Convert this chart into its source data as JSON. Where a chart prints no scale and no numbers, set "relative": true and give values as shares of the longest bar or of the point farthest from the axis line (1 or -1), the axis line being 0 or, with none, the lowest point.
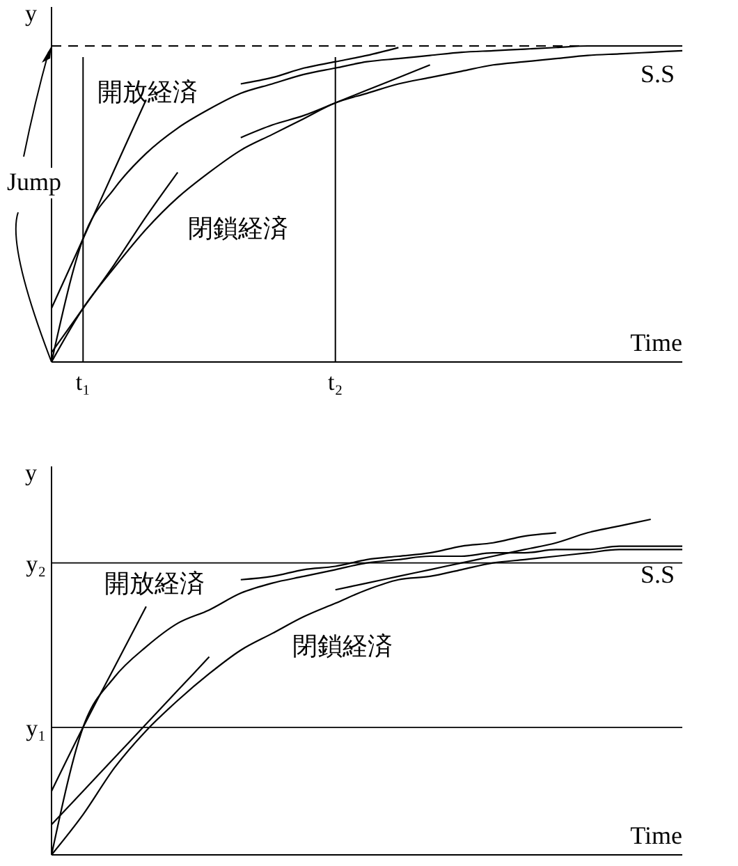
{
  "chart_data": [
    {
      "type": "line",
      "relative": true,
      "xlabel": "Time",
      "ylabel": "y",
      "categories": [
        null,
        "t₁",
        null,
        null,
        null,
        null,
        null,
        null,
        null,
        "t₂",
        null,
        null,
        null,
        null,
        null,
        null,
        null,
        null,
        null,
        null,
        null
      ],
      "series": [
        {
          "name": "開放経済",
          "color": "#000000",
          "values": [
            0,
            0.39,
            0.55,
            0.66,
            0.74,
            0.8,
            0.85,
            0.88,
            0.91,
            0.93,
            0.95,
            0.96,
            0.97,
            0.98,
            0.985,
            0.99,
            0.995,
            1,
            1,
            1,
            1
          ]
        },
        {
          "name": "閉鎖経済",
          "color": "#000000",
          "values": [
            0,
            0.17,
            0.3,
            0.42,
            0.52,
            0.6,
            0.67,
            0.72,
            0.77,
            0.82,
            0.85,
            0.88,
            0.9,
            0.92,
            0.94,
            0.95,
            0.96,
            0.97,
            0.975,
            0.98,
            0.985
          ]
        },
        {
          "color": "#000000",
          "values": [
            0.17,
            0.39,
            0.61,
            0.83,
            null,
            null,
            null,
            null,
            null,
            null,
            null,
            null,
            null,
            null,
            null,
            null,
            null,
            null,
            null,
            null,
            null
          ]
        },
        {
          "color": "#000000",
          "values": [
            0.03,
            0.17,
            0.31,
            0.46,
            0.6,
            null,
            null,
            null,
            null,
            null,
            null,
            null,
            null,
            null,
            null,
            null,
            null,
            null,
            null,
            null,
            null
          ]
        },
        {
          "color": "#000000",
          "values": [
            null,
            null,
            null,
            null,
            null,
            null,
            0.88,
            0.9,
            0.93,
            0.95,
            0.97,
            0.995,
            null,
            null,
            null,
            null,
            null,
            null,
            null,
            null,
            null
          ]
        },
        {
          "color": "#000000",
          "values": [
            null,
            null,
            null,
            null,
            null,
            null,
            0.71,
            0.75,
            0.78,
            0.82,
            0.86,
            0.9,
            0.94,
            null,
            null,
            null,
            null,
            null,
            null,
            null,
            null
          ]
        }
      ],
      "ref_lines": [
        {
          "axis": "y",
          "value": 1,
          "line_style": "dashed"
        },
        {
          "axis": "x",
          "value": "t₁"
        },
        {
          "axis": "x",
          "value": "t₂"
        }
      ],
      "annotations": [
        "Jump",
        {
          "text": "S.S",
          "y": 1
        }
      ]
    },
    {
      "type": "line",
      "relative": true,
      "xlabel": "Time",
      "ylabel": "y",
      "categories": [
        null,
        null,
        null,
        null,
        null,
        null,
        null,
        null,
        null,
        null,
        null,
        null,
        null,
        null,
        null,
        null,
        null,
        null,
        null,
        null,
        null
      ],
      "series": [
        {
          "name": "開放経済",
          "color": "#000000",
          "values": [
            0,
            0.38,
            0.53,
            0.62,
            0.69,
            0.73,
            0.78,
            0.81,
            0.83,
            0.85,
            0.87,
            0.88,
            0.89,
            0.89,
            0.9,
            0.9,
            0.91,
            0.91,
            0.92,
            0.92,
            0.92
          ]
        },
        {
          "name": "閉鎖経済",
          "color": "#000000",
          "values": [
            0,
            0.12,
            0.26,
            0.37,
            0.46,
            0.54,
            0.61,
            0.66,
            0.71,
            0.75,
            0.79,
            0.82,
            0.83,
            0.85,
            0.87,
            0.88,
            0.89,
            0.9,
            0.91,
            0.91,
            0.91
          ]
        },
        {
          "color": "#000000",
          "values": [
            0.19,
            0.38,
            0.56,
            0.74,
            null,
            null,
            null,
            null,
            null,
            null,
            null,
            null,
            null,
            null,
            null,
            null,
            null,
            null,
            null,
            null,
            null
          ]
        },
        {
          "color": "#000000",
          "values": [
            0.09,
            0.19,
            0.29,
            0.39,
            0.49,
            0.59,
            null,
            null,
            null,
            null,
            null,
            null,
            null,
            null,
            null,
            null,
            null,
            null,
            null,
            null,
            null
          ]
        },
        {
          "color": "#000000",
          "values": [
            null,
            null,
            null,
            null,
            null,
            null,
            0.82,
            0.83,
            0.85,
            0.86,
            0.88,
            0.89,
            0.9,
            0.92,
            0.93,
            0.95,
            0.96,
            null,
            null,
            null,
            null
          ]
        },
        {
          "color": "#000000",
          "values": [
            null,
            null,
            null,
            null,
            null,
            null,
            null,
            null,
            null,
            0.79,
            0.81,
            0.83,
            0.85,
            0.87,
            0.89,
            0.91,
            0.93,
            0.96,
            0.98,
            1,
            null
          ]
        }
      ],
      "ref_lines": [
        {
          "axis": "y",
          "value": 0.87,
          "label": "y₂"
        },
        {
          "axis": "y",
          "value": 0.38,
          "label": "y₁"
        }
      ],
      "annotations": [
        {
          "text": "S.S",
          "y": 0.92
        }
      ]
    }
  ]
}
